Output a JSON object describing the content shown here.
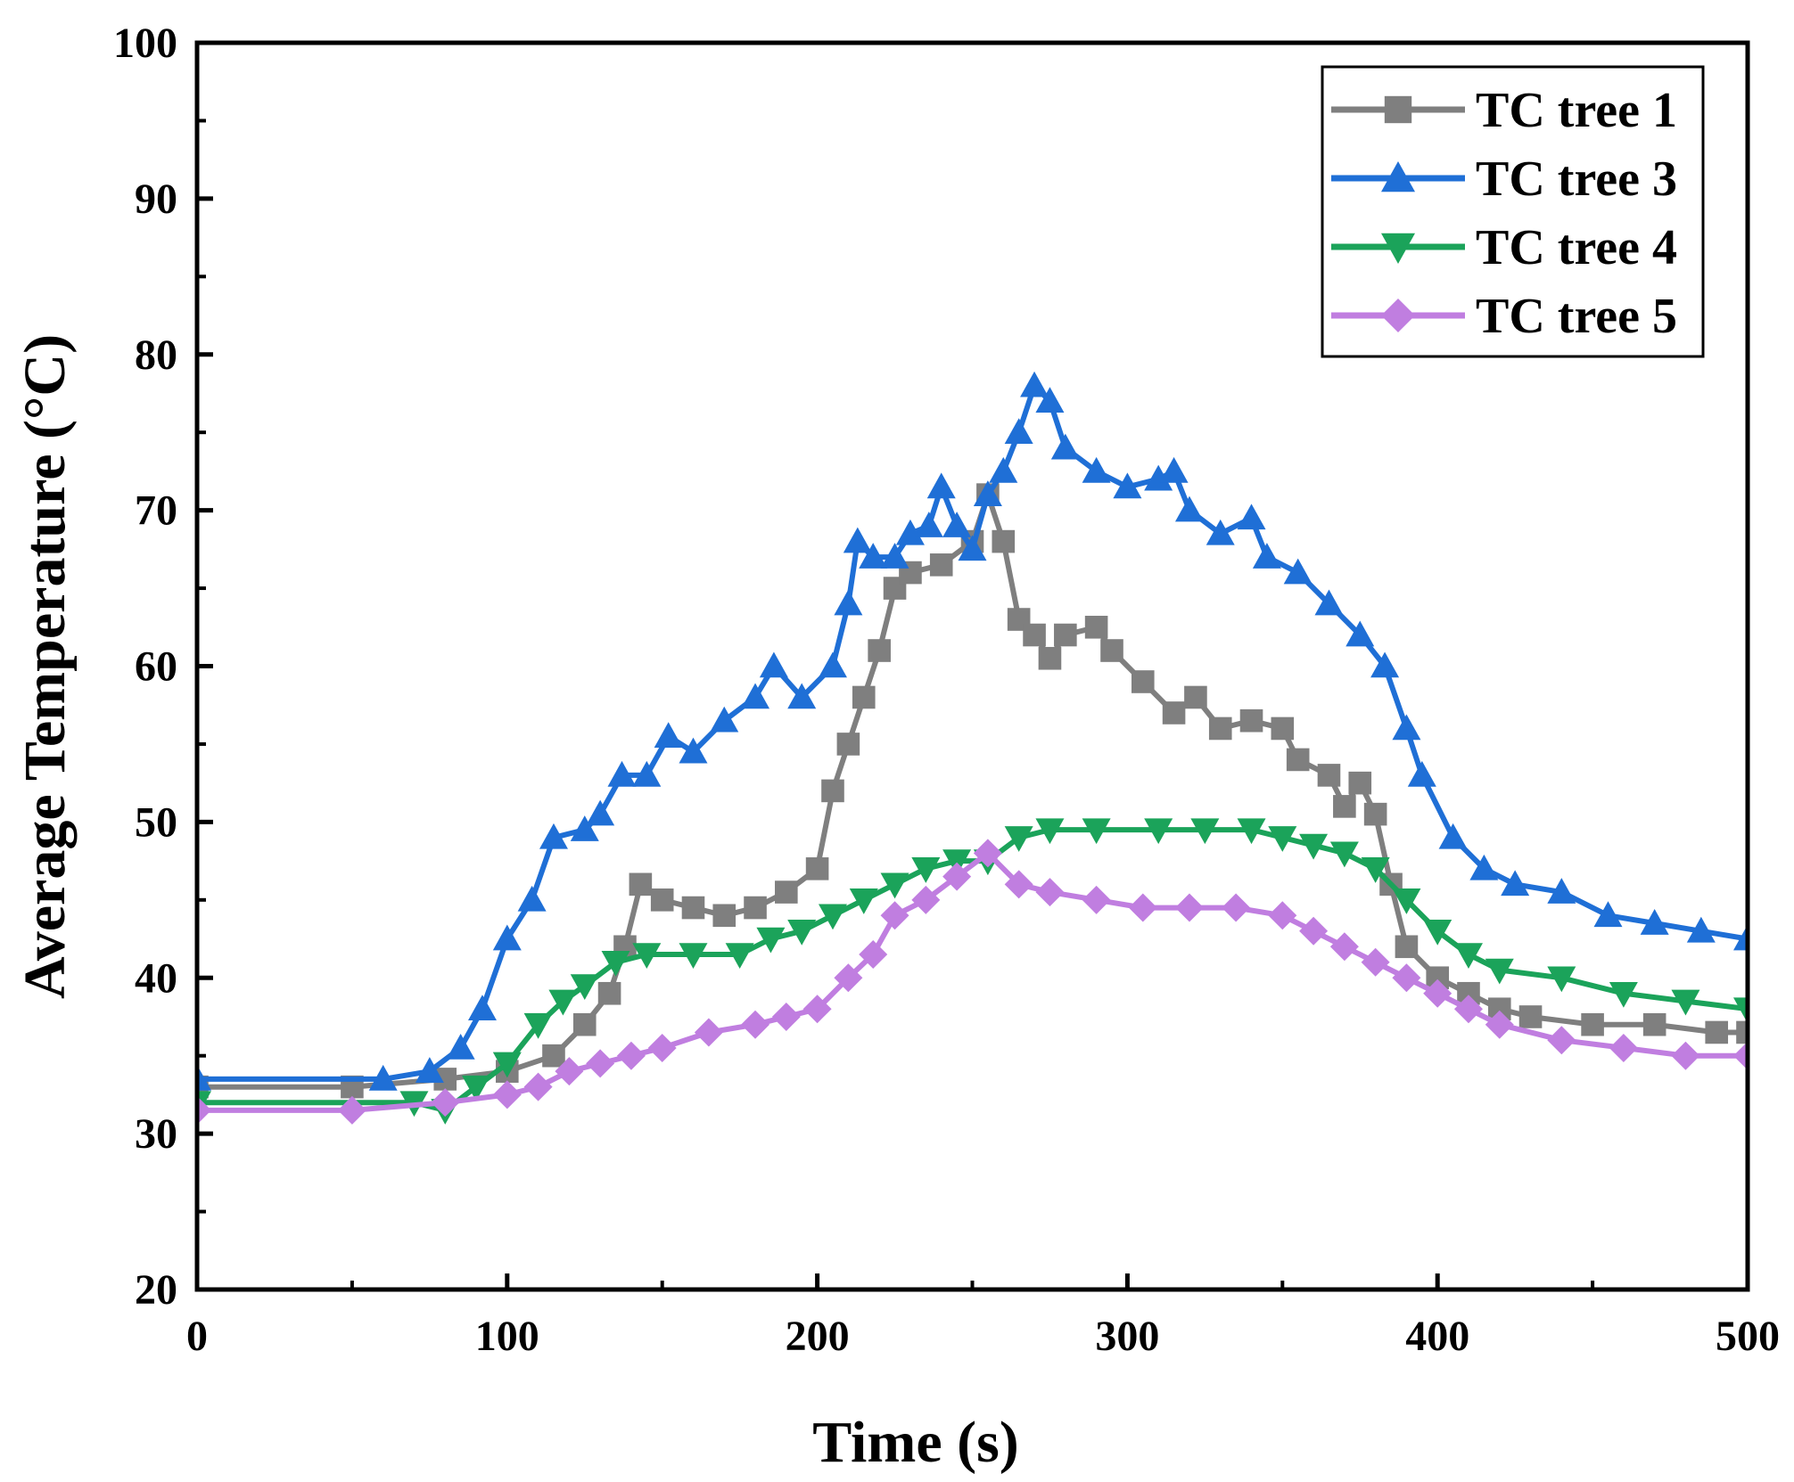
{
  "chart_data": {
    "type": "line",
    "xlabel": "Time (s)",
    "ylabel": "Average Temperature (°C)",
    "xlim": [
      0,
      500
    ],
    "ylim": [
      20,
      100
    ],
    "xticks": [
      0,
      100,
      200,
      300,
      400,
      500
    ],
    "yticks": [
      20,
      30,
      40,
      50,
      60,
      70,
      80,
      90,
      100
    ],
    "grid": false,
    "legend_position": "top-right",
    "series": [
      {
        "name": "TC tree 1",
        "color": "#7f7f7f",
        "marker": "square",
        "points": [
          [
            0,
            33
          ],
          [
            50,
            33
          ],
          [
            80,
            33.5
          ],
          [
            100,
            34
          ],
          [
            115,
            35
          ],
          [
            125,
            37
          ],
          [
            133,
            39
          ],
          [
            138,
            42
          ],
          [
            143,
            46
          ],
          [
            150,
            45
          ],
          [
            160,
            44.5
          ],
          [
            170,
            44
          ],
          [
            180,
            44.5
          ],
          [
            190,
            45.5
          ],
          [
            200,
            47
          ],
          [
            205,
            52
          ],
          [
            210,
            55
          ],
          [
            215,
            58
          ],
          [
            220,
            61
          ],
          [
            225,
            65
          ],
          [
            230,
            66
          ],
          [
            240,
            66.5
          ],
          [
            250,
            68
          ],
          [
            255,
            71
          ],
          [
            260,
            68
          ],
          [
            265,
            63
          ],
          [
            270,
            62
          ],
          [
            275,
            60.5
          ],
          [
            280,
            62
          ],
          [
            290,
            62.5
          ],
          [
            295,
            61
          ],
          [
            305,
            59
          ],
          [
            315,
            57
          ],
          [
            322,
            58
          ],
          [
            330,
            56
          ],
          [
            340,
            56.5
          ],
          [
            350,
            56
          ],
          [
            355,
            54
          ],
          [
            365,
            53
          ],
          [
            370,
            51
          ],
          [
            375,
            52.5
          ],
          [
            380,
            50.5
          ],
          [
            385,
            46
          ],
          [
            390,
            42
          ],
          [
            400,
            40
          ],
          [
            410,
            39
          ],
          [
            420,
            38
          ],
          [
            430,
            37.5
          ],
          [
            450,
            37
          ],
          [
            470,
            37
          ],
          [
            490,
            36.5
          ],
          [
            500,
            36.5
          ]
        ]
      },
      {
        "name": "TC tree 3",
        "color": "#1f6fd6",
        "marker": "triangle-up",
        "points": [
          [
            0,
            33.5
          ],
          [
            60,
            33.5
          ],
          [
            75,
            34
          ],
          [
            85,
            35.5
          ],
          [
            92,
            38
          ],
          [
            100,
            42.5
          ],
          [
            108,
            45
          ],
          [
            115,
            49
          ],
          [
            125,
            49.5
          ],
          [
            130,
            50.5
          ],
          [
            137,
            53
          ],
          [
            145,
            53
          ],
          [
            152,
            55.5
          ],
          [
            160,
            54.5
          ],
          [
            170,
            56.5
          ],
          [
            180,
            58
          ],
          [
            186,
            60
          ],
          [
            195,
            58
          ],
          [
            205,
            60
          ],
          [
            210,
            64
          ],
          [
            213,
            68
          ],
          [
            218,
            67
          ],
          [
            225,
            67
          ],
          [
            230,
            68.5
          ],
          [
            236,
            69
          ],
          [
            240,
            71.5
          ],
          [
            245,
            69
          ],
          [
            250,
            67.5
          ],
          [
            255,
            71
          ],
          [
            260,
            72.5
          ],
          [
            265,
            75
          ],
          [
            270,
            78
          ],
          [
            275,
            77
          ],
          [
            280,
            74
          ],
          [
            290,
            72.5
          ],
          [
            300,
            71.5
          ],
          [
            310,
            72
          ],
          [
            315,
            72.5
          ],
          [
            320,
            70
          ],
          [
            330,
            68.5
          ],
          [
            340,
            69.5
          ],
          [
            345,
            67
          ],
          [
            355,
            66
          ],
          [
            365,
            64
          ],
          [
            375,
            62
          ],
          [
            383,
            60
          ],
          [
            390,
            56
          ],
          [
            395,
            53
          ],
          [
            405,
            49
          ],
          [
            415,
            47
          ],
          [
            425,
            46
          ],
          [
            440,
            45.5
          ],
          [
            455,
            44
          ],
          [
            470,
            43.5
          ],
          [
            485,
            43
          ],
          [
            500,
            42.5
          ]
        ]
      },
      {
        "name": "TC tree 4",
        "color": "#1ba35a",
        "marker": "triangle-down",
        "points": [
          [
            0,
            32
          ],
          [
            70,
            32
          ],
          [
            80,
            31.5
          ],
          [
            90,
            33
          ],
          [
            100,
            34.5
          ],
          [
            110,
            37
          ],
          [
            118,
            38.5
          ],
          [
            125,
            39.5
          ],
          [
            135,
            41
          ],
          [
            145,
            41.5
          ],
          [
            160,
            41.5
          ],
          [
            175,
            41.5
          ],
          [
            185,
            42.5
          ],
          [
            195,
            43
          ],
          [
            205,
            44
          ],
          [
            215,
            45
          ],
          [
            225,
            46
          ],
          [
            235,
            47
          ],
          [
            245,
            47.5
          ],
          [
            255,
            47.5
          ],
          [
            265,
            49
          ],
          [
            275,
            49.5
          ],
          [
            290,
            49.5
          ],
          [
            310,
            49.5
          ],
          [
            325,
            49.5
          ],
          [
            340,
            49.5
          ],
          [
            350,
            49
          ],
          [
            360,
            48.5
          ],
          [
            370,
            48
          ],
          [
            380,
            47
          ],
          [
            390,
            45
          ],
          [
            400,
            43
          ],
          [
            410,
            41.5
          ],
          [
            420,
            40.5
          ],
          [
            440,
            40
          ],
          [
            460,
            39
          ],
          [
            480,
            38.5
          ],
          [
            500,
            38
          ]
        ]
      },
      {
        "name": "TC tree 5",
        "color": "#c07ee0",
        "marker": "diamond",
        "points": [
          [
            0,
            31.5
          ],
          [
            50,
            31.5
          ],
          [
            80,
            32
          ],
          [
            100,
            32.5
          ],
          [
            110,
            33
          ],
          [
            120,
            34
          ],
          [
            130,
            34.5
          ],
          [
            140,
            35
          ],
          [
            150,
            35.5
          ],
          [
            165,
            36.5
          ],
          [
            180,
            37
          ],
          [
            190,
            37.5
          ],
          [
            200,
            38
          ],
          [
            210,
            40
          ],
          [
            218,
            41.5
          ],
          [
            225,
            44
          ],
          [
            235,
            45
          ],
          [
            245,
            46.5
          ],
          [
            255,
            48
          ],
          [
            265,
            46
          ],
          [
            275,
            45.5
          ],
          [
            290,
            45
          ],
          [
            305,
            44.5
          ],
          [
            320,
            44.5
          ],
          [
            335,
            44.5
          ],
          [
            350,
            44
          ],
          [
            360,
            43
          ],
          [
            370,
            42
          ],
          [
            380,
            41
          ],
          [
            390,
            40
          ],
          [
            400,
            39
          ],
          [
            410,
            38
          ],
          [
            420,
            37
          ],
          [
            440,
            36
          ],
          [
            460,
            35.5
          ],
          [
            480,
            35
          ],
          [
            500,
            35
          ]
        ]
      }
    ]
  }
}
